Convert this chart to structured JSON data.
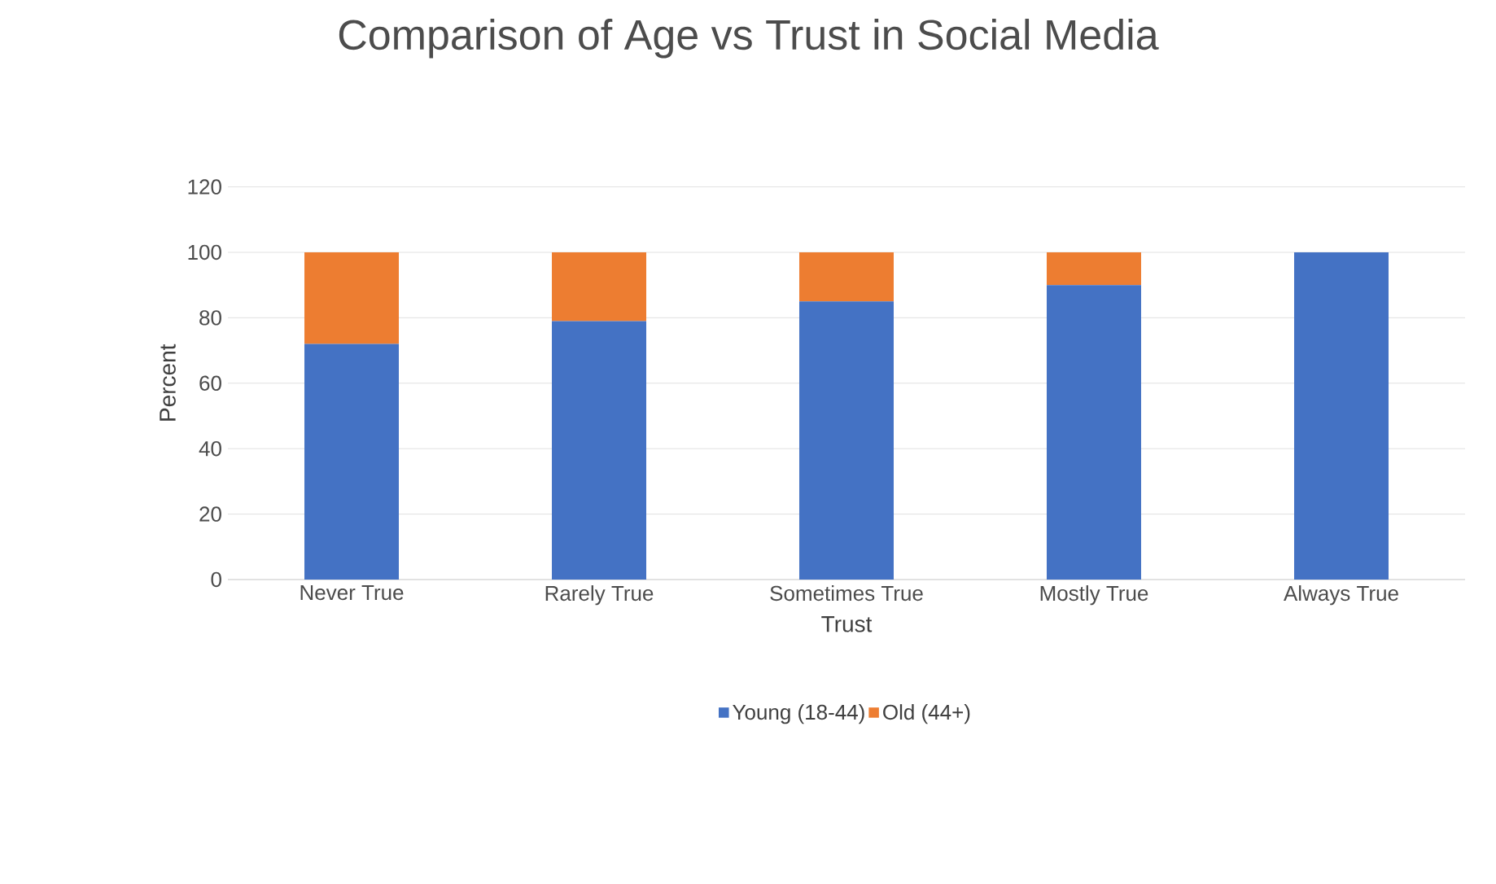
{
  "chart_data": {
    "type": "bar",
    "stacked": true,
    "title": "Comparison of Age vs Trust in Social Media",
    "xlabel": "Trust",
    "ylabel": "Percent",
    "categories": [
      "Never True",
      "Rarely True",
      "Sometimes True",
      "Mostly True",
      "Always True"
    ],
    "series": [
      {
        "name": "Young (18-44)",
        "color": "#4472c4",
        "values": [
          72,
          79,
          85,
          90,
          100
        ]
      },
      {
        "name": "Old (44+)",
        "color": "#ed7d31",
        "values": [
          28,
          21,
          15,
          10,
          0
        ]
      }
    ],
    "ylim": [
      0,
      120
    ],
    "yticks": [
      0,
      20,
      40,
      60,
      80,
      100,
      120
    ],
    "grid": "y",
    "legend": "bottom"
  }
}
